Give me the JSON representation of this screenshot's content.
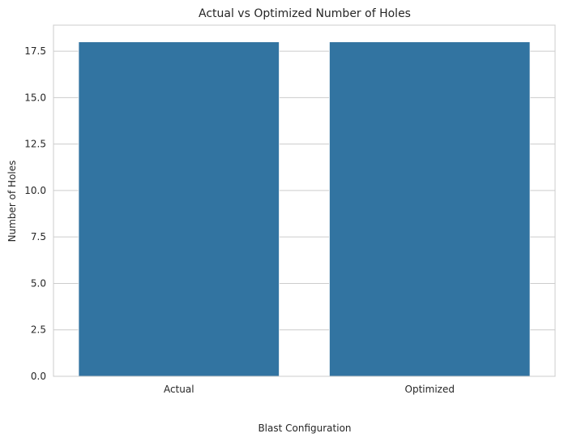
{
  "chart_data": {
    "type": "bar",
    "title": "Actual vs Optimized Number of Holes",
    "xlabel": "Blast Configuration",
    "ylabel": "Number of Holes",
    "categories": [
      "Actual",
      "Optimized"
    ],
    "values": [
      18,
      18
    ],
    "ylim": [
      0,
      18.9
    ],
    "yticks": [
      0.0,
      2.5,
      5.0,
      7.5,
      10.0,
      12.5,
      15.0,
      17.5
    ],
    "ytick_labels": [
      "0.0",
      "2.5",
      "5.0",
      "7.5",
      "10.0",
      "12.5",
      "15.0",
      "17.5"
    ],
    "grid": true,
    "bar_color": "#3274a1"
  }
}
